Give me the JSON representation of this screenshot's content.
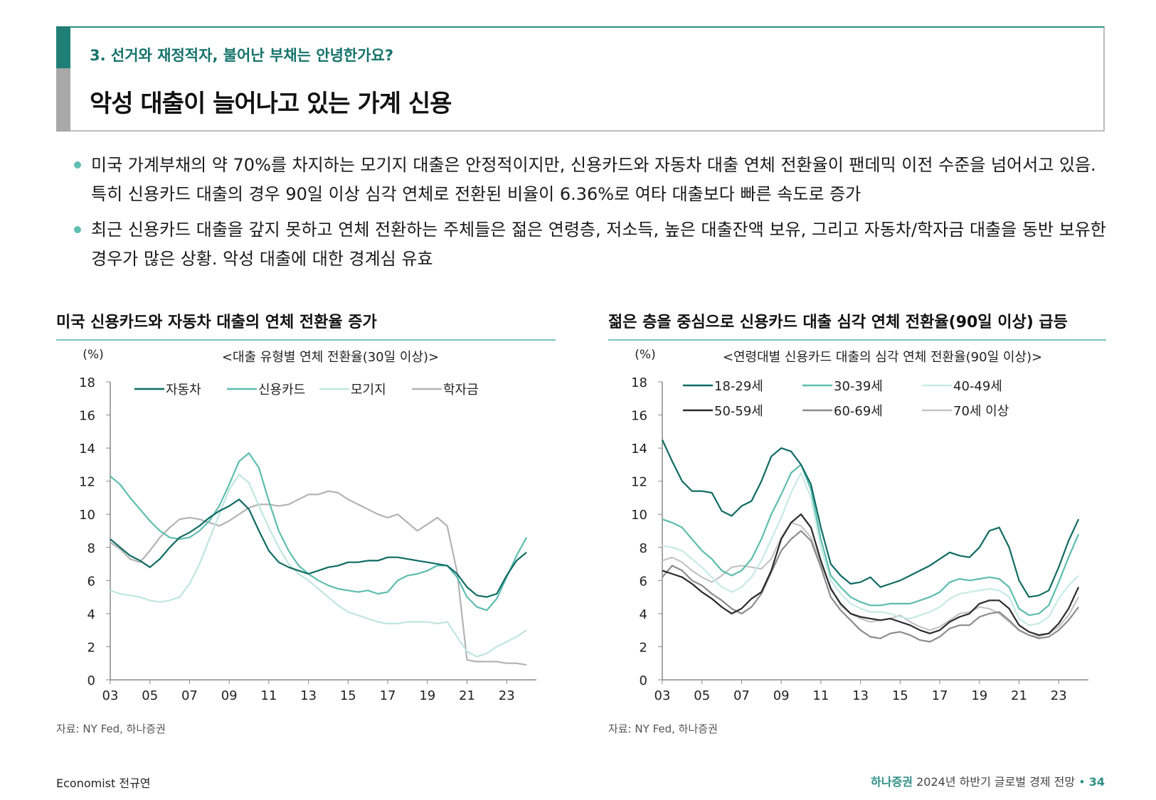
{
  "header": {
    "section_label": "3. 선거와 재정적자, 불어난 부채는 안녕한가요?",
    "title": "악성 대출이 늘어나고 있는 가계 신용"
  },
  "bullets": [
    "미국 가계부채의 약 70%를 차지하는 모기지 대출은 안정적이지만, 신용카드와 자동차 대출 연체 전환율이 팬데믹 이전 수준을 넘어서고 있음. 특히 신용카드 대출의 경우 90일 이상 심각 연체로 전환된 비율이 6.36%로 여타 대출보다 빠른 속도로 증가",
    "최근 신용카드 대출을 갚지 못하고 연체 전환하는 주체들은 젊은 연령층, 저소득, 높은 대출잔액 보유, 그리고 자동차/학자금 대출을 동반 보유한 경우가 많은 상황. 악성 대출에 대한 경계심 유효"
  ],
  "left_chart": {
    "heading": "미국 신용카드와 자동차 대출의 연체 전환율 증가",
    "source": "자료: NY Fed, 하나증권"
  },
  "right_chart": {
    "heading": "젊은 층을 중심으로 신용카드 대출 심각 연체 전환율(90일 이상) 급등",
    "source": "자료: NY Fed, 하나증권"
  },
  "footer": {
    "author": "Economist 전규연",
    "brand": "하나증권",
    "report": "2024년 하반기 글로벌 경제 전망",
    "separator": "•",
    "page": "34"
  },
  "chart_data": [
    {
      "type": "line",
      "title": "<대출 유형별 연체 전환율(30일 이상)>",
      "ylabel": "(%)",
      "xlabel": "",
      "xlim": [
        2003,
        2024.5
      ],
      "ylim": [
        0,
        18
      ],
      "yticks": [
        0,
        2,
        4,
        6,
        8,
        10,
        12,
        14,
        16,
        18
      ],
      "xticks": [
        2003,
        2005,
        2007,
        2009,
        2011,
        2013,
        2015,
        2017,
        2019,
        2021,
        2023
      ],
      "xtick_labels": [
        "03",
        "05",
        "07",
        "09",
        "11",
        "13",
        "15",
        "17",
        "19",
        "21",
        "23"
      ],
      "legend_position": "top",
      "series": [
        {
          "name": "자동차",
          "color": "#0f6b63",
          "x": [
            2003,
            2003.5,
            2004,
            2004.5,
            2005,
            2005.5,
            2006,
            2006.5,
            2007,
            2007.5,
            2008,
            2008.5,
            2009,
            2009.5,
            2010,
            2010.5,
            2011,
            2011.5,
            2012,
            2012.5,
            2013,
            2013.5,
            2014,
            2014.5,
            2015,
            2015.5,
            2016,
            2016.5,
            2017,
            2017.5,
            2018,
            2018.5,
            2019,
            2019.5,
            2020,
            2020.5,
            2021,
            2021.5,
            2022,
            2022.5,
            2023,
            2023.5,
            2024
          ],
          "y": [
            8.5,
            8.0,
            7.5,
            7.2,
            6.8,
            7.3,
            8.0,
            8.6,
            8.9,
            9.3,
            9.8,
            10.2,
            10.5,
            10.9,
            10.3,
            9.0,
            7.8,
            7.1,
            6.8,
            6.6,
            6.4,
            6.6,
            6.8,
            6.9,
            7.1,
            7.1,
            7.2,
            7.2,
            7.4,
            7.4,
            7.3,
            7.2,
            7.1,
            7.0,
            6.9,
            6.4,
            5.6,
            5.1,
            5.0,
            5.2,
            6.3,
            7.2,
            7.7
          ]
        },
        {
          "name": "신용카드",
          "color": "#5dbdb0",
          "x": [
            2003,
            2003.5,
            2004,
            2004.5,
            2005,
            2005.5,
            2006,
            2006.5,
            2007,
            2007.5,
            2008,
            2008.5,
            2009,
            2009.5,
            2010,
            2010.5,
            2011,
            2011.5,
            2012,
            2012.5,
            2013,
            2013.5,
            2014,
            2014.5,
            2015,
            2015.5,
            2016,
            2016.5,
            2017,
            2017.5,
            2018,
            2018.5,
            2019,
            2019.5,
            2020,
            2020.5,
            2021,
            2021.5,
            2022,
            2022.5,
            2023,
            2023.5,
            2024
          ],
          "y": [
            12.3,
            11.8,
            11.0,
            10.3,
            9.6,
            9.0,
            8.6,
            8.5,
            8.6,
            9.0,
            9.6,
            10.5,
            11.8,
            13.2,
            13.7,
            12.8,
            10.8,
            9.0,
            7.8,
            6.9,
            6.4,
            6.0,
            5.7,
            5.5,
            5.4,
            5.3,
            5.4,
            5.2,
            5.3,
            6.0,
            6.3,
            6.4,
            6.6,
            6.9,
            6.9,
            6.2,
            5.0,
            4.4,
            4.2,
            4.9,
            6.2,
            7.5,
            8.6
          ]
        },
        {
          "name": "모기지",
          "color": "#bfe6df",
          "x": [
            2003,
            2003.5,
            2004,
            2004.5,
            2005,
            2005.5,
            2006,
            2006.5,
            2007,
            2007.5,
            2008,
            2008.5,
            2009,
            2009.5,
            2010,
            2010.5,
            2011,
            2011.5,
            2012,
            2012.5,
            2013,
            2013.5,
            2014,
            2014.5,
            2015,
            2015.5,
            2016,
            2016.5,
            2017,
            2017.5,
            2018,
            2018.5,
            2019,
            2019.5,
            2020,
            2020.5,
            2021,
            2021.5,
            2022,
            2022.5,
            2023,
            2023.5,
            2024
          ],
          "y": [
            5.4,
            5.2,
            5.1,
            5.0,
            4.8,
            4.7,
            4.8,
            5.0,
            5.8,
            7.0,
            8.5,
            10.0,
            11.5,
            12.4,
            11.9,
            10.5,
            9.2,
            8.0,
            7.0,
            6.4,
            6.0,
            5.5,
            5.0,
            4.5,
            4.1,
            3.9,
            3.7,
            3.5,
            3.4,
            3.4,
            3.5,
            3.5,
            3.5,
            3.4,
            3.5,
            2.6,
            1.7,
            1.4,
            1.6,
            2.0,
            2.3,
            2.6,
            3.0
          ]
        },
        {
          "name": "학자금",
          "color": "#b3b3b3",
          "x": [
            2003,
            2003.5,
            2004,
            2004.5,
            2005,
            2005.5,
            2006,
            2006.5,
            2007,
            2007.5,
            2008,
            2008.5,
            2009,
            2009.5,
            2010,
            2010.5,
            2011,
            2011.5,
            2012,
            2012.5,
            2013,
            2013.5,
            2014,
            2014.5,
            2015,
            2015.5,
            2016,
            2016.5,
            2017,
            2017.5,
            2018,
            2018.5,
            2019,
            2019.5,
            2020,
            2020.5,
            2021,
            2021.5,
            2022,
            2022.5,
            2023,
            2023.5,
            2024
          ],
          "y": [
            8.3,
            7.9,
            7.3,
            7.1,
            7.8,
            8.6,
            9.2,
            9.7,
            9.8,
            9.7,
            9.5,
            9.3,
            9.6,
            10.0,
            10.4,
            10.6,
            10.6,
            10.5,
            10.6,
            10.9,
            11.2,
            11.2,
            11.4,
            11.3,
            10.9,
            10.6,
            10.3,
            10.0,
            9.8,
            10.0,
            9.5,
            9.0,
            9.4,
            9.8,
            9.3,
            6.5,
            1.2,
            1.1,
            1.1,
            1.1,
            1.0,
            1.0,
            0.9
          ]
        }
      ]
    },
    {
      "type": "line",
      "title": "<연령대별 신용카드 대출의 심각 연체 전환율(90일 이상)>",
      "ylabel": "(%)",
      "xlabel": "",
      "xlim": [
        2003,
        2024.5
      ],
      "ylim": [
        0,
        18
      ],
      "yticks": [
        0,
        2,
        4,
        6,
        8,
        10,
        12,
        14,
        16,
        18
      ],
      "xticks": [
        2003,
        2005,
        2007,
        2009,
        2011,
        2013,
        2015,
        2017,
        2019,
        2021,
        2023
      ],
      "xtick_labels": [
        "03",
        "05",
        "07",
        "09",
        "11",
        "13",
        "15",
        "17",
        "19",
        "21",
        "23"
      ],
      "legend_position": "top",
      "series": [
        {
          "name": "18-29세",
          "color": "#0f6b63",
          "x": [
            2003,
            2003.5,
            2004,
            2004.5,
            2005,
            2005.5,
            2006,
            2006.5,
            2007,
            2007.5,
            2008,
            2008.5,
            2009,
            2009.5,
            2010,
            2010.5,
            2011,
            2011.5,
            2012,
            2012.5,
            2013,
            2013.5,
            2014,
            2014.5,
            2015,
            2015.5,
            2016,
            2016.5,
            2017,
            2017.5,
            2018,
            2018.5,
            2019,
            2019.5,
            2020,
            2020.5,
            2021,
            2021.5,
            2022,
            2022.5,
            2023,
            2023.5,
            2024
          ],
          "y": [
            14.5,
            13.2,
            12.0,
            11.4,
            11.4,
            11.3,
            10.2,
            9.9,
            10.5,
            10.8,
            12.0,
            13.5,
            14.0,
            13.8,
            13.0,
            11.8,
            9.2,
            7.0,
            6.3,
            5.8,
            5.9,
            6.2,
            5.6,
            5.8,
            6.0,
            6.3,
            6.6,
            6.9,
            7.3,
            7.7,
            7.5,
            7.4,
            8.0,
            9.0,
            9.2,
            8.0,
            6.0,
            5.0,
            5.1,
            5.4,
            6.8,
            8.4,
            9.7
          ]
        },
        {
          "name": "30-39세",
          "color": "#5dbdb0",
          "x": [
            2003,
            2003.5,
            2004,
            2004.5,
            2005,
            2005.5,
            2006,
            2006.5,
            2007,
            2007.5,
            2008,
            2008.5,
            2009,
            2009.5,
            2010,
            2010.5,
            2011,
            2011.5,
            2012,
            2012.5,
            2013,
            2013.5,
            2014,
            2014.5,
            2015,
            2015.5,
            2016,
            2016.5,
            2017,
            2017.5,
            2018,
            2018.5,
            2019,
            2019.5,
            2020,
            2020.5,
            2021,
            2021.5,
            2022,
            2022.5,
            2023,
            2023.5,
            2024
          ],
          "y": [
            9.7,
            9.5,
            9.2,
            8.5,
            7.8,
            7.3,
            6.6,
            6.3,
            6.6,
            7.3,
            8.5,
            10.0,
            11.2,
            12.5,
            13.0,
            11.5,
            8.5,
            6.3,
            5.6,
            5.0,
            4.7,
            4.5,
            4.5,
            4.6,
            4.6,
            4.6,
            4.8,
            5.0,
            5.3,
            5.9,
            6.1,
            6.0,
            6.1,
            6.2,
            6.1,
            5.6,
            4.3,
            3.9,
            4.0,
            4.5,
            5.9,
            7.4,
            8.8
          ]
        },
        {
          "name": "40-49세",
          "color": "#c6ebe4",
          "x": [
            2003,
            2003.5,
            2004,
            2004.5,
            2005,
            2005.5,
            2006,
            2006.5,
            2007,
            2007.5,
            2008,
            2008.5,
            2009,
            2009.5,
            2010,
            2010.5,
            2011,
            2011.5,
            2012,
            2012.5,
            2013,
            2013.5,
            2014,
            2014.5,
            2015,
            2015.5,
            2016,
            2016.5,
            2017,
            2017.5,
            2018,
            2018.5,
            2019,
            2019.5,
            2020,
            2020.5,
            2021,
            2021.5,
            2022,
            2022.5,
            2023,
            2023.5,
            2024
          ],
          "y": [
            8.1,
            8.0,
            7.8,
            7.3,
            6.8,
            6.2,
            5.6,
            5.3,
            5.6,
            6.2,
            7.2,
            8.5,
            9.8,
            11.3,
            12.5,
            11.0,
            8.0,
            6.0,
            5.2,
            4.6,
            4.3,
            4.1,
            4.1,
            4.0,
            3.8,
            3.7,
            3.9,
            4.1,
            4.4,
            4.9,
            5.2,
            5.3,
            5.4,
            5.5,
            5.4,
            5.0,
            3.7,
            3.3,
            3.4,
            3.8,
            4.9,
            5.7,
            6.3
          ]
        },
        {
          "name": "50-59세",
          "color": "#2b2b2b",
          "x": [
            2003,
            2003.5,
            2004,
            2004.5,
            2005,
            2005.5,
            2006,
            2006.5,
            2007,
            2007.5,
            2008,
            2008.5,
            2009,
            2009.5,
            2010,
            2010.5,
            2011,
            2011.5,
            2012,
            2012.5,
            2013,
            2013.5,
            2014,
            2014.5,
            2015,
            2015.5,
            2016,
            2016.5,
            2017,
            2017.5,
            2018,
            2018.5,
            2019,
            2019.5,
            2020,
            2020.5,
            2021,
            2021.5,
            2022,
            2022.5,
            2023,
            2023.5,
            2024
          ],
          "y": [
            6.6,
            6.4,
            6.2,
            5.8,
            5.3,
            4.9,
            4.4,
            4.0,
            4.3,
            4.9,
            5.3,
            6.6,
            8.5,
            9.5,
            10.0,
            9.2,
            7.2,
            5.5,
            4.6,
            4.0,
            3.8,
            3.7,
            3.6,
            3.7,
            3.5,
            3.3,
            3.0,
            2.8,
            3.0,
            3.5,
            3.8,
            4.0,
            4.6,
            4.8,
            4.8,
            4.3,
            3.3,
            2.9,
            2.7,
            2.8,
            3.4,
            4.3,
            5.6
          ]
        },
        {
          "name": "60-69세",
          "color": "#8c8c8c",
          "x": [
            2003,
            2003.5,
            2004,
            2004.5,
            2005,
            2005.5,
            2006,
            2006.5,
            2007,
            2007.5,
            2008,
            2008.5,
            2009,
            2009.5,
            2010,
            2010.5,
            2011,
            2011.5,
            2012,
            2012.5,
            2013,
            2013.5,
            2014,
            2014.5,
            2015,
            2015.5,
            2016,
            2016.5,
            2017,
            2017.5,
            2018,
            2018.5,
            2019,
            2019.5,
            2020,
            2020.5,
            2021,
            2021.5,
            2022,
            2022.5,
            2023,
            2023.5,
            2024
          ],
          "y": [
            6.2,
            6.9,
            6.6,
            6.0,
            5.7,
            5.2,
            4.8,
            4.3,
            4.0,
            4.4,
            5.2,
            6.5,
            7.8,
            8.5,
            9.0,
            8.4,
            6.8,
            5.0,
            4.2,
            3.6,
            3.0,
            2.6,
            2.5,
            2.8,
            2.9,
            2.7,
            2.4,
            2.3,
            2.6,
            3.1,
            3.3,
            3.3,
            3.8,
            4.0,
            4.1,
            3.6,
            3.0,
            2.7,
            2.5,
            2.6,
            3.0,
            3.6,
            4.4
          ]
        },
        {
          "name": "70세 이상",
          "color": "#c4c4c4",
          "x": [
            2003,
            2003.5,
            2004,
            2004.5,
            2005,
            2005.5,
            2006,
            2006.5,
            2007,
            2007.5,
            2008,
            2008.5,
            2009,
            2009.5,
            2010,
            2010.5,
            2011,
            2011.5,
            2012,
            2012.5,
            2013,
            2013.5,
            2014,
            2014.5,
            2015,
            2015.5,
            2016,
            2016.5,
            2017,
            2017.5,
            2018,
            2018.5,
            2019,
            2019.5,
            2020,
            2020.5,
            2021,
            2021.5,
            2022,
            2022.5,
            2023,
            2023.5,
            2024
          ],
          "y": [
            7.2,
            7.4,
            7.1,
            6.6,
            6.2,
            5.9,
            6.3,
            6.8,
            6.9,
            6.8,
            6.7,
            7.3,
            8.6,
            9.5,
            9.3,
            8.6,
            7.0,
            5.6,
            4.5,
            4.0,
            3.7,
            3.5,
            3.6,
            3.7,
            3.9,
            3.5,
            3.2,
            3.0,
            3.2,
            3.6,
            4.0,
            4.1,
            4.4,
            4.3,
            4.0,
            3.5,
            3.0,
            2.7,
            2.6,
            2.8,
            3.2,
            3.9,
            5.0
          ]
        }
      ]
    }
  ]
}
